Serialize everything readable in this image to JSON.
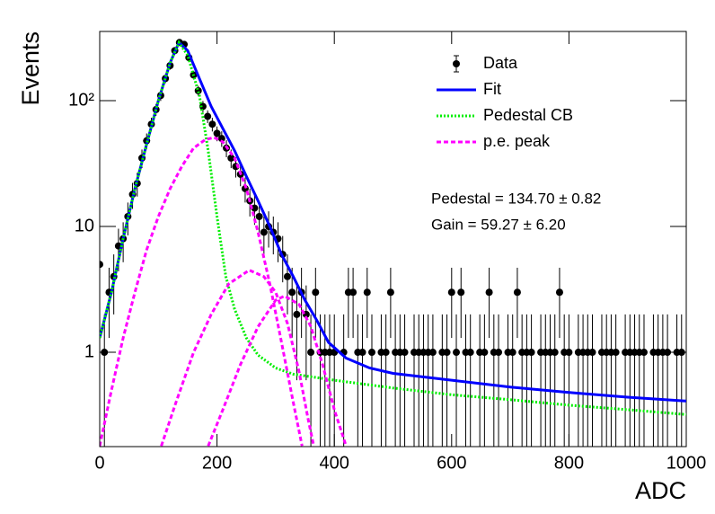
{
  "chart_data": {
    "type": "line",
    "xlabel": "ADC",
    "ylabel": "Events",
    "xlim": [
      0,
      1000
    ],
    "ylim": [
      0.178,
      355
    ],
    "log_y": true,
    "xticks": [
      0,
      200,
      400,
      600,
      800,
      1000
    ],
    "yticks": [
      1,
      10,
      {
        "value": 100,
        "label": "10²"
      }
    ],
    "legend": "top-right",
    "annotations": [
      "Pedestal = 134.70 ± 0.82",
      "Gain = 59.27 ± 6.20"
    ],
    "series": [
      {
        "name": "Data",
        "kind": "points",
        "color": "#000000",
        "x": [
          0,
          8,
          16,
          24,
          32,
          40,
          48,
          56,
          64,
          72,
          80,
          88,
          96,
          104,
          112,
          120,
          128,
          136,
          144,
          152,
          160,
          168,
          176,
          184,
          192,
          200,
          208,
          216,
          224,
          232,
          240,
          248,
          256,
          264,
          272,
          280,
          288,
          296,
          304,
          312,
          320,
          328,
          336,
          344,
          352,
          360,
          368,
          376,
          384,
          392,
          400,
          408,
          416,
          424,
          432,
          440,
          448,
          456,
          464,
          472,
          480,
          488,
          496,
          504,
          512,
          520,
          528,
          536,
          544,
          552,
          560,
          568,
          576,
          584,
          592,
          600,
          608,
          616,
          624,
          632,
          640,
          648,
          656,
          664,
          672,
          680,
          688,
          696,
          704,
          712,
          720,
          728,
          736,
          744,
          752,
          760,
          768,
          776,
          784,
          792,
          800,
          808,
          816,
          824,
          832,
          840,
          848,
          856,
          864,
          872,
          880,
          888,
          896,
          904,
          912,
          920,
          928,
          936,
          944,
          952,
          960,
          968,
          976,
          984,
          992
        ],
        "values": [
          5,
          1,
          3,
          4,
          7,
          8,
          12,
          18,
          22,
          35,
          48,
          65,
          85,
          110,
          150,
          190,
          250,
          290,
          280,
          220,
          160,
          120,
          90,
          75,
          65,
          55,
          50,
          42,
          35,
          30,
          26,
          20,
          16,
          14,
          12,
          9,
          10,
          9,
          8,
          6,
          4,
          3,
          2,
          3,
          2,
          1,
          3,
          1,
          1,
          1,
          1,
          null,
          1,
          3,
          3,
          1,
          1,
          3,
          1,
          null,
          1,
          1,
          3,
          1,
          1,
          1,
          null,
          1,
          1,
          1,
          1,
          1,
          null,
          1,
          1,
          3,
          1,
          3,
          1,
          1,
          null,
          1,
          1,
          3,
          1,
          1,
          null,
          1,
          1,
          3,
          1,
          1,
          1,
          null,
          1,
          1,
          1,
          1,
          3,
          1,
          1,
          null,
          1,
          1,
          1,
          1,
          null,
          1,
          1,
          1,
          1,
          null,
          1,
          1,
          1,
          1,
          1,
          null,
          1,
          1,
          1,
          1,
          null,
          1,
          1
        ],
        "errors": [
          2.2,
          1,
          1.7,
          2,
          2.6,
          2.8,
          3.5,
          4.2,
          4.7,
          5.9,
          6.9,
          8.1,
          9.2,
          10.5,
          12.2,
          13.8,
          15.8,
          17,
          16.7,
          14.8,
          12.6,
          11,
          9.5,
          8.7,
          8.1,
          7.4,
          7.1,
          6.5,
          5.9,
          5.5,
          5.1,
          4.5,
          4,
          3.7,
          3.5,
          3,
          3.2,
          3,
          2.8,
          2.4,
          2,
          1.7,
          1.4,
          1.7,
          1.4,
          1,
          1.7,
          1,
          1,
          1,
          1,
          null,
          1,
          1.7,
          1.7,
          1,
          1,
          1.7,
          1,
          null,
          1,
          1,
          1.7,
          1,
          1,
          1,
          null,
          1,
          1,
          1,
          1,
          1,
          null,
          1,
          1,
          1.7,
          1,
          1.7,
          1,
          1,
          null,
          1,
          1,
          1.7,
          1,
          1,
          null,
          1,
          1,
          1.7,
          1,
          1,
          1,
          null,
          1,
          1,
          1,
          1,
          1.7,
          1,
          1,
          null,
          1,
          1,
          1,
          1,
          null,
          1,
          1,
          1,
          1,
          null,
          1,
          1,
          1,
          1,
          1,
          null,
          1,
          1,
          1,
          1,
          null,
          1,
          1
        ]
      },
      {
        "name": "Fit",
        "kind": "line",
        "color": "#0000ff",
        "x": [
          0,
          20,
          40,
          60,
          80,
          100,
          120,
          135,
          150,
          170,
          190,
          210,
          230,
          250,
          270,
          290,
          310,
          330,
          350,
          370,
          390,
          420,
          460,
          500,
          600,
          700,
          800,
          900,
          1000
        ],
        "values": [
          1.3,
          3,
          8,
          20,
          45,
          100,
          200,
          290,
          250,
          150,
          90,
          60,
          40,
          25,
          16,
          10,
          6,
          4,
          2.6,
          1.8,
          1.2,
          0.9,
          0.75,
          0.68,
          0.6,
          0.53,
          0.48,
          0.44,
          0.41
        ]
      },
      {
        "name": "Pedestal CB",
        "kind": "line",
        "dash": "dotted",
        "color": "#00ee00",
        "x": [
          0,
          20,
          40,
          60,
          80,
          100,
          120,
          135,
          150,
          170,
          185,
          200,
          215,
          230,
          250,
          270,
          300,
          330,
          380,
          400,
          500,
          600,
          700,
          800,
          900,
          1000
        ],
        "values": [
          1.3,
          3,
          8,
          20,
          45,
          100,
          200,
          290,
          230,
          110,
          40,
          12,
          4,
          2.2,
          1.3,
          0.95,
          0.75,
          0.67,
          0.62,
          0.6,
          0.52,
          0.46,
          0.42,
          0.38,
          0.35,
          0.32
        ]
      },
      {
        "name": "p.e. peak",
        "kind": "curves",
        "dash": "dashed",
        "color": "#ff00ff",
        "curves": [
          {
            "x": [
              0,
              20,
              40,
              60,
              80,
              100,
              120,
              140,
              160,
              180,
              195,
              210,
              230,
              250,
              270,
              290,
              310,
              330,
              345
            ],
            "values": [
              0.18,
              0.5,
              1.3,
              3,
              6.5,
              12,
              20,
              30,
              42,
              49,
              51,
              47,
              35,
              20,
              9,
              3.5,
              1.2,
              0.4,
              0.18
            ]
          },
          {
            "x": [
              105,
              130,
              160,
              190,
              220,
              255,
              280,
              300,
              320,
              340,
              355,
              365
            ],
            "values": [
              0.18,
              0.4,
              1,
              2,
              3.5,
              4.5,
              4,
              3,
              1.7,
              0.7,
              0.3,
              0.18
            ]
          },
          {
            "x": [
              185,
              210,
              240,
              270,
              300,
              315,
              340,
              360,
              380,
              400,
              420
            ],
            "values": [
              0.18,
              0.35,
              0.8,
              1.6,
              2.6,
              2.8,
              2.4,
              1.6,
              0.8,
              0.35,
              0.18
            ]
          }
        ]
      }
    ]
  }
}
